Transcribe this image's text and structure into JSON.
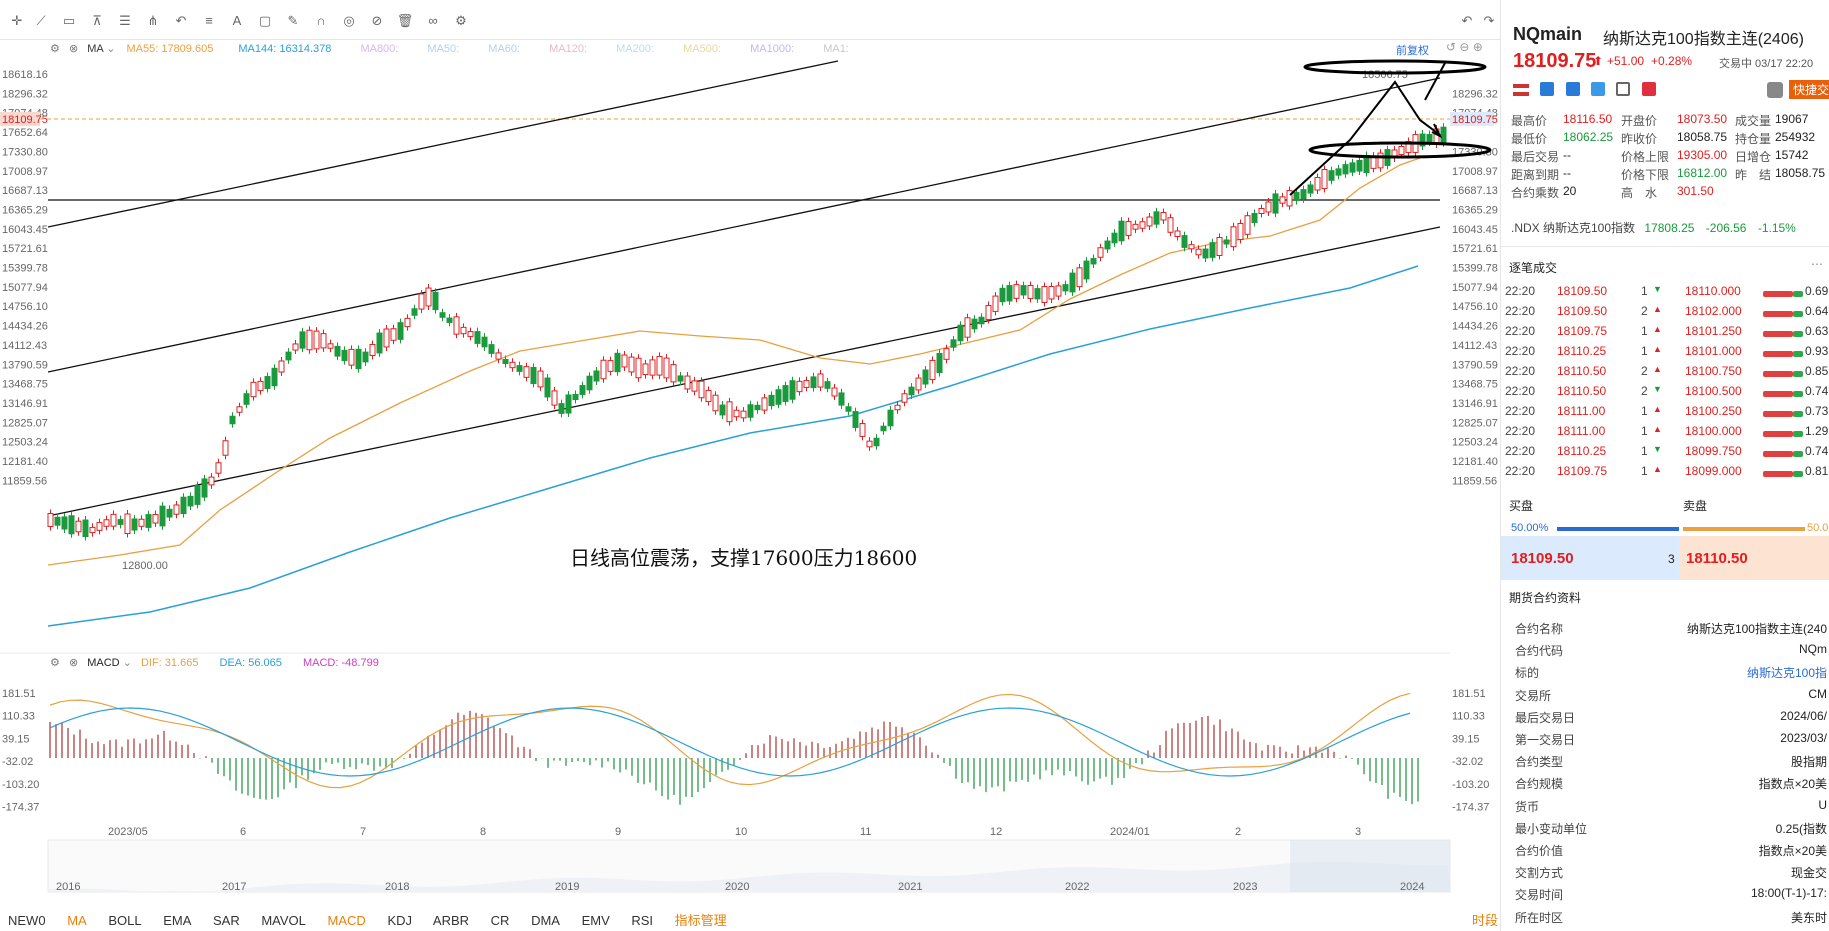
{
  "toolbar": {
    "title": "NQmain",
    "icons": [
      "crosshair-icon",
      "draw-icon",
      "rect-icon",
      "measure-icon",
      "text-icon",
      "settings-icon"
    ]
  },
  "price_axis": [
    "18618.16",
    "18296.32",
    "17974.48",
    "17652.64",
    "17330.80",
    "17008.97",
    "16687.13",
    "16365.29",
    "16043.45",
    "15721.61",
    "15399.78",
    "15077.94",
    "14756.10",
    "14434.26",
    "14112.43",
    "13790.59",
    "13468.75",
    "13146.91",
    "12825.07",
    "12503.24",
    "12181.40",
    "11859.56"
  ],
  "price_axis_right": [
    "18296.32",
    "17974.48",
    "17330.80",
    "17008.97",
    "16687.13",
    "16365.29",
    "16043.45",
    "15721.61",
    "15399.78",
    "15077.94",
    "14756.10",
    "14434.26",
    "14112.43",
    "13790.59",
    "13468.75",
    "13146.91",
    "12825.07",
    "12503.24",
    "12181.40",
    "11859.56"
  ],
  "current_price_tag": "18109.75",
  "right_price_tag": "18109.75",
  "high_label": "18506.75",
  "low_label": "12800.00",
  "annotation": "日线高位震荡，支撑17600压力18600",
  "ma_legend": {
    "title": "MA",
    "ma55_label": "MA55:",
    "ma55_value": "17809.605",
    "ma144_label": "MA144:",
    "ma144_value": "16314.378",
    "dim": [
      "MA800:",
      "MA50:",
      "MA60:",
      "MA120:",
      "MA200:",
      "MA500:",
      "MA1000:",
      "MA1:"
    ],
    "adjust": "前复权"
  },
  "macd_legend": {
    "title": "MACD",
    "dif_label": "DIF:",
    "dif_value": "31.665",
    "dea_label": "DEA:",
    "dea_value": "56.065",
    "macd_label": "MACD:",
    "macd_value": "-48.799"
  },
  "macd_axis": [
    "181.51",
    "110.33",
    "39.15",
    "-32.02",
    "-103.20",
    "-174.37"
  ],
  "time_axis": [
    "2023/05",
    "6",
    "7",
    "8",
    "9",
    "10",
    "11",
    "12",
    "2024/01",
    "2",
    "3"
  ],
  "overview_axis": [
    "2016",
    "2017",
    "2018",
    "2019",
    "2020",
    "2021",
    "2022",
    "2023",
    "2024"
  ],
  "indicators": [
    "NEW0",
    "MA",
    "BOLL",
    "EMA",
    "SAR",
    "MAVOL",
    "MACD",
    "KDJ",
    "ARBR",
    "CR",
    "DMA",
    "EMV",
    "RSI",
    "指标管理"
  ],
  "period_label": "时段",
  "colors": {
    "up": "#e02020",
    "down": "#1a9a3c",
    "ma55": "#e8a040",
    "ma144": "#2aa0d8"
  },
  "panel": {
    "symbol": "NQmain",
    "name": "纳斯达克100指数主连(2406)",
    "price": "18109.75",
    "change": "+51.00",
    "change_pct": "+0.28%",
    "time": "交易中 03/17 22:20",
    "quick_trade": "快捷交",
    "stats": [
      {
        "l": "最高价",
        "v": "18116.50",
        "l2": "开盘价",
        "v2": "18073.50",
        "l3": "成交量",
        "v3": "19067"
      },
      {
        "l": "最低价",
        "v": "18062.25",
        "l2": "昨收价",
        "v2": "18058.75",
        "l3": "持仓量",
        "v3": "254932"
      },
      {
        "l": "最后交易",
        "v": "--",
        "l2": "价格上限",
        "v2": "19305.00",
        "l3": "日增仓",
        "v3": "15742"
      },
      {
        "l": "距离到期",
        "v": "--",
        "l2": "价格下限",
        "v2": "16812.00",
        "l3": "昨　结",
        "v3": "18058.75"
      },
      {
        "l": "合约乘数",
        "v": "20",
        "l2": "高　水",
        "v2": "301.50",
        "l3": "",
        "v3": ""
      }
    ],
    "index_line": {
      "name": ".NDX 纳斯达克100指数",
      "price": "17808.25",
      "chg": "-206.56",
      "pct": "-1.15%"
    },
    "ticks_title": "逐笔成交",
    "ticks": [
      {
        "t": "22:20",
        "p": "18109.50",
        "q": "1",
        "d": "down",
        "p2": "18110.000",
        "r": "0.69"
      },
      {
        "t": "22:20",
        "p": "18109.50",
        "q": "2",
        "d": "up",
        "p2": "18102.000",
        "r": "0.64"
      },
      {
        "t": "22:20",
        "p": "18109.75",
        "q": "1",
        "d": "up",
        "p2": "18101.250",
        "r": "0.63"
      },
      {
        "t": "22:20",
        "p": "18110.25",
        "q": "1",
        "d": "up",
        "p2": "18101.000",
        "r": "0.93"
      },
      {
        "t": "22:20",
        "p": "18110.50",
        "q": "2",
        "d": "up",
        "p2": "18100.750",
        "r": "0.85"
      },
      {
        "t": "22:20",
        "p": "18110.50",
        "q": "2",
        "d": "down",
        "p2": "18100.500",
        "r": "0.74"
      },
      {
        "t": "22:20",
        "p": "18111.00",
        "q": "1",
        "d": "up",
        "p2": "18100.250",
        "r": "0.73"
      },
      {
        "t": "22:20",
        "p": "18111.00",
        "q": "1",
        "d": "up",
        "p2": "18100.000",
        "r": "1.29"
      },
      {
        "t": "22:20",
        "p": "18110.25",
        "q": "1",
        "d": "down",
        "p2": "18099.750",
        "r": "0.74"
      },
      {
        "t": "22:20",
        "p": "18109.75",
        "q": "1",
        "d": "up",
        "p2": "18099.000",
        "r": "0.81"
      }
    ],
    "buy_label": "买盘",
    "sell_label": "卖盘",
    "buy_pct": "50.00%",
    "sell_pct": "50.0",
    "bid": "18109.50",
    "bid_qty": "3",
    "ask": "18110.50",
    "info_title": "期货合约资料",
    "info": [
      {
        "k": "合约名称",
        "v": "纳斯达克100指数主连(240"
      },
      {
        "k": "合约代码",
        "v": "NQm"
      },
      {
        "k": "标的",
        "v": "纳斯达克100指"
      },
      {
        "k": "交易所",
        "v": "CM"
      },
      {
        "k": "最后交易日",
        "v": "2024/06/"
      },
      {
        "k": "第一交易日",
        "v": "2023/03/"
      },
      {
        "k": "合约类型",
        "v": "股指期"
      },
      {
        "k": "合约规模",
        "v": "指数点×20美"
      },
      {
        "k": "货币",
        "v": "U"
      },
      {
        "k": "最小变动单位",
        "v": "0.25(指数"
      },
      {
        "k": "合约价值",
        "v": "指数点×20美"
      },
      {
        "k": "交割方式",
        "v": "现金交"
      },
      {
        "k": "交易时间",
        "v": "18:00(T-1)-17:"
      },
      {
        "k": "所在时区",
        "v": "美东时"
      }
    ]
  }
}
